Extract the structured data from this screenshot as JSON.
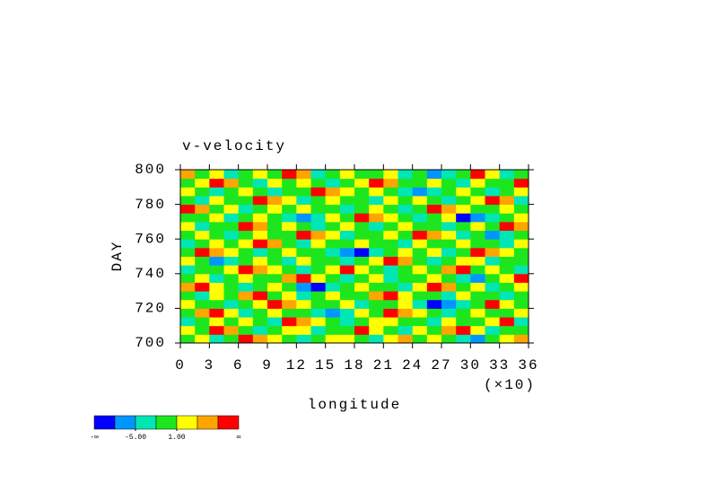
{
  "chart_data": {
    "type": "heatmap",
    "title": "v-velocity",
    "x_label": "longitude",
    "x_multiplier": "(×10)",
    "y_label": "DAY",
    "xlim": [
      0,
      36
    ],
    "xticks": [
      0,
      3,
      6,
      9,
      12,
      15,
      18,
      21,
      24,
      27,
      30,
      33,
      36
    ],
    "ylim": [
      700,
      800
    ],
    "yticks": [
      700,
      720,
      740,
      760,
      780,
      800
    ],
    "levels": [
      -8,
      -5,
      -2,
      1,
      4,
      7
    ],
    "colors": [
      "#0000ff",
      "#0096ff",
      "#00e6b4",
      "#1ee61e",
      "#ffff00",
      "#ffa500",
      "#ff0000"
    ],
    "colorbar": {
      "min_label": "-∞",
      "max_label": "∞",
      "ticks": [
        {
          "value": -5,
          "label": "-5.00"
        },
        {
          "value": 1,
          "label": "1.00"
        }
      ]
    },
    "z": [
      [
        0,
        2,
        -3,
        0,
        9,
        5,
        2,
        0,
        -3,
        0,
        2,
        2,
        0,
        -3,
        2,
        5,
        0,
        2,
        0,
        -3,
        -6,
        0,
        2,
        5
      ],
      [
        2,
        0,
        9,
        5,
        0,
        -3,
        0,
        2,
        2,
        -3,
        0,
        0,
        9,
        2,
        0,
        -3,
        2,
        0,
        5,
        9,
        2,
        -3,
        0,
        0
      ],
      [
        -3,
        0,
        2,
        0,
        2,
        0,
        -3,
        9,
        5,
        2,
        0,
        -3,
        0,
        2,
        2,
        0,
        0,
        -3,
        2,
        0,
        0,
        2,
        9,
        -3
      ],
      [
        0,
        5,
        9,
        2,
        -3,
        0,
        2,
        0,
        0,
        -3,
        -6,
        -3,
        2,
        0,
        9,
        5,
        2,
        0,
        -3,
        0,
        2,
        0,
        0,
        2
      ],
      [
        2,
        0,
        0,
        -3,
        0,
        2,
        9,
        5,
        2,
        0,
        0,
        2,
        -3,
        0,
        0,
        2,
        -3,
        -10,
        -6,
        -3,
        0,
        9,
        2,
        0
      ],
      [
        0,
        -3,
        2,
        0,
        5,
        9,
        0,
        2,
        -3,
        0,
        2,
        0,
        0,
        5,
        9,
        2,
        0,
        0,
        -3,
        2,
        0,
        0,
        -3,
        0
      ],
      [
        5,
        9,
        2,
        0,
        -3,
        0,
        2,
        0,
        -6,
        -10,
        -3,
        0,
        2,
        0,
        0,
        -3,
        2,
        9,
        5,
        0,
        2,
        -3,
        0,
        2
      ],
      [
        0,
        2,
        -3,
        0,
        2,
        0,
        0,
        5,
        9,
        2,
        0,
        -3,
        0,
        2,
        -3,
        0,
        0,
        2,
        0,
        -3,
        -6,
        0,
        2,
        9
      ],
      [
        -3,
        0,
        0,
        2,
        9,
        5,
        2,
        0,
        -3,
        0,
        2,
        9,
        2,
        0,
        -3,
        0,
        2,
        0,
        5,
        9,
        0,
        2,
        0,
        -3
      ],
      [
        2,
        0,
        -6,
        -3,
        0,
        2,
        0,
        -3,
        2,
        0,
        0,
        -3,
        0,
        2,
        9,
        5,
        0,
        -3,
        0,
        2,
        2,
        -3,
        0,
        0
      ],
      [
        0,
        9,
        5,
        2,
        0,
        -3,
        0,
        2,
        0,
        0,
        -3,
        -6,
        -10,
        -3,
        0,
        2,
        0,
        2,
        -3,
        0,
        9,
        5,
        2,
        0
      ],
      [
        -3,
        0,
        2,
        0,
        2,
        9,
        5,
        0,
        -3,
        2,
        0,
        0,
        2,
        0,
        0,
        -3,
        2,
        0,
        0,
        2,
        0,
        0,
        -3,
        2
      ],
      [
        0,
        2,
        0,
        -3,
        0,
        2,
        0,
        0,
        9,
        5,
        2,
        -3,
        0,
        0,
        2,
        0,
        9,
        5,
        2,
        -3,
        0,
        -6,
        -3,
        0
      ],
      [
        2,
        -3,
        0,
        0,
        9,
        5,
        0,
        2,
        0,
        -3,
        0,
        2,
        0,
        -3,
        0,
        2,
        0,
        0,
        -3,
        0,
        2,
        0,
        9,
        5
      ],
      [
        0,
        0,
        2,
        -3,
        0,
        2,
        0,
        -3,
        -6,
        -3,
        2,
        0,
        9,
        5,
        2,
        0,
        -3,
        0,
        2,
        -10,
        -6,
        -3,
        0,
        2
      ],
      [
        9,
        5,
        0,
        2,
        -3,
        0,
        2,
        0,
        2,
        0,
        0,
        -3,
        0,
        2,
        0,
        -3,
        0,
        9,
        5,
        2,
        0,
        0,
        2,
        0
      ],
      [
        0,
        -3,
        2,
        0,
        0,
        9,
        5,
        2,
        -3,
        0,
        2,
        0,
        0,
        -3,
        2,
        0,
        2,
        0,
        -3,
        0,
        2,
        9,
        5,
        -3
      ],
      [
        2,
        0,
        -3,
        0,
        2,
        0,
        -3,
        0,
        0,
        9,
        5,
        2,
        0,
        2,
        0,
        -3,
        -6,
        -3,
        0,
        2,
        0,
        -3,
        0,
        2
      ],
      [
        0,
        2,
        9,
        5,
        0,
        -3,
        2,
        0,
        2,
        0,
        -3,
        0,
        2,
        9,
        5,
        0,
        0,
        2,
        0,
        -3,
        2,
        0,
        0,
        9
      ],
      [
        5,
        0,
        2,
        -3,
        0,
        2,
        0,
        9,
        5,
        -3,
        0,
        2,
        0,
        0,
        2,
        -3,
        0,
        -6,
        -3,
        0,
        9,
        2,
        -3,
        0
      ]
    ]
  }
}
